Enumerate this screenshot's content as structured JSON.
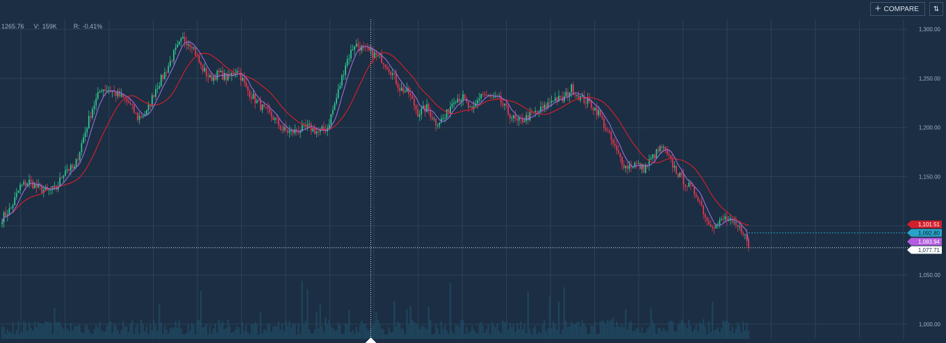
{
  "toolbar": {
    "compare_label": "COMPARE",
    "compare_icon": "plus-icon",
    "sort_icon": "swap-vertical-icon"
  },
  "info_bar": {
    "price": "1265.76",
    "volume_label": "V:",
    "volume": "159K",
    "range_label": "R:",
    "range": "-0.41%"
  },
  "colors": {
    "background": "#1b2e43",
    "grid": "#2c4258",
    "up_candle": "#2fc58f",
    "down_candle": "#e8374f",
    "ma_fast": "#9a6fe0",
    "ma_slow": "#d21f2c",
    "volume": "#1f4a62",
    "axis_text": "#9fb0c0"
  },
  "chart_data": {
    "type": "candlestick",
    "title": "",
    "ylim": [
      985,
      1310
    ],
    "y_ticks": [
      "1,300.00",
      "1,250.00",
      "1,200.00",
      "1,150.00",
      "1,100.00",
      "1,050.00",
      "1,000.00"
    ],
    "y_tick_values": [
      1300,
      1250,
      1200,
      1150,
      1100,
      1050,
      1000
    ],
    "series": [
      {
        "name": "close",
        "anchors": [
          [
            0,
            1108
          ],
          [
            5,
            1118
          ],
          [
            10,
            1140
          ],
          [
            15,
            1145
          ],
          [
            20,
            1138
          ],
          [
            25,
            1135
          ],
          [
            30,
            1138
          ],
          [
            35,
            1158
          ],
          [
            40,
            1158
          ],
          [
            45,
            1190
          ],
          [
            50,
            1220
          ],
          [
            55,
            1240
          ],
          [
            60,
            1238
          ],
          [
            65,
            1232
          ],
          [
            70,
            1225
          ],
          [
            75,
            1210
          ],
          [
            80,
            1215
          ],
          [
            85,
            1240
          ],
          [
            90,
            1255
          ],
          [
            95,
            1275
          ],
          [
            100,
            1290
          ],
          [
            105,
            1285
          ],
          [
            110,
            1262
          ],
          [
            115,
            1250
          ],
          [
            120,
            1255
          ],
          [
            125,
            1250
          ],
          [
            130,
            1260
          ],
          [
            135,
            1240
          ],
          [
            140,
            1228
          ],
          [
            145,
            1218
          ],
          [
            150,
            1210
          ],
          [
            155,
            1198
          ],
          [
            160,
            1195
          ],
          [
            165,
            1198
          ],
          [
            170,
            1200
          ],
          [
            175,
            1195
          ],
          [
            180,
            1200
          ],
          [
            185,
            1230
          ],
          [
            190,
            1265
          ],
          [
            195,
            1285
          ],
          [
            200,
            1280
          ],
          [
            205,
            1275
          ],
          [
            210,
            1270
          ],
          [
            215,
            1258
          ],
          [
            220,
            1240
          ],
          [
            225,
            1235
          ],
          [
            230,
            1215
          ],
          [
            235,
            1220
          ],
          [
            240,
            1205
          ],
          [
            245,
            1210
          ],
          [
            250,
            1230
          ],
          [
            255,
            1230
          ],
          [
            260,
            1215
          ],
          [
            265,
            1235
          ],
          [
            270,
            1230
          ],
          [
            275,
            1228
          ],
          [
            280,
            1215
          ],
          [
            285,
            1205
          ],
          [
            290,
            1210
          ],
          [
            295,
            1215
          ],
          [
            300,
            1220
          ],
          [
            305,
            1230
          ],
          [
            310,
            1228
          ],
          [
            315,
            1240
          ],
          [
            320,
            1230
          ],
          [
            325,
            1225
          ],
          [
            330,
            1215
          ],
          [
            335,
            1195
          ],
          [
            340,
            1175
          ],
          [
            345,
            1160
          ],
          [
            350,
            1163
          ],
          [
            355,
            1158
          ],
          [
            360,
            1170
          ],
          [
            365,
            1180
          ],
          [
            370,
            1165
          ],
          [
            375,
            1150
          ],
          [
            380,
            1140
          ],
          [
            385,
            1130
          ],
          [
            390,
            1105
          ],
          [
            395,
            1100
          ],
          [
            400,
            1108
          ],
          [
            405,
            1100
          ],
          [
            410,
            1095
          ],
          [
            413,
            1077.71
          ]
        ]
      },
      {
        "name": "ma_slow",
        "last_value": 1101.51
      },
      {
        "name": "ma_fast",
        "last_value": 1083.94
      },
      {
        "name": "reference",
        "last_value": 1092.8
      }
    ],
    "price_tags": [
      {
        "label": "1,101.51",
        "value": 1101.51,
        "color": "#d21f2c",
        "text_color": "#ffffff"
      },
      {
        "label": "1,092.80",
        "value": 1092.8,
        "color": "#2aa3c8",
        "text_color": "#0d1f2e"
      },
      {
        "label": "1,083.94",
        "value": 1083.94,
        "color": "#b45de0",
        "text_color": "#ffffff"
      },
      {
        "label": "1,077.71",
        "value": 1077.71,
        "color": "#ffffff",
        "text_color": "#1b2e43"
      }
    ],
    "crosshair_bar": 204,
    "bar_count": 414,
    "grid": true
  }
}
